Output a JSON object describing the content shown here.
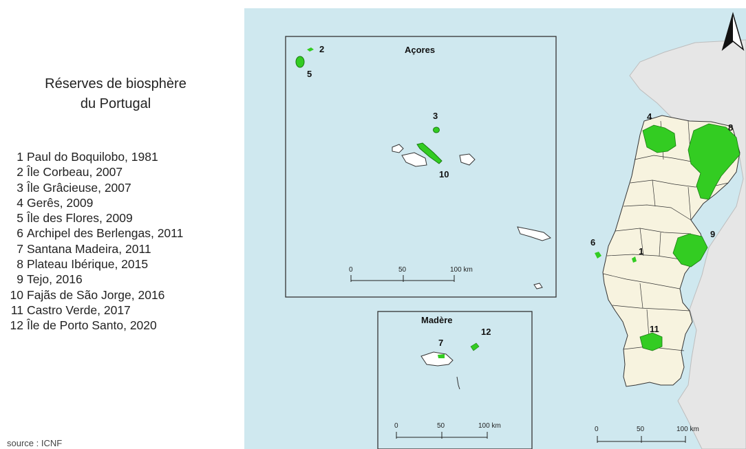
{
  "legend": {
    "title_line1": "Réserves de biosphère",
    "title_line2": "du Portugal",
    "items": [
      {
        "num": "1",
        "label": "Paul do Boquilobo, 1981"
      },
      {
        "num": "2",
        "label": "Île Corbeau, 2007"
      },
      {
        "num": "3",
        "label": "Île Grâcieuse, 2007"
      },
      {
        "num": "4",
        "label": "Gerês, 2009"
      },
      {
        "num": "5",
        "label": "Île des Flores, 2009"
      },
      {
        "num": "6",
        "label": "Archipel des Berlengas, 2011"
      },
      {
        "num": "7",
        "label": "Santana Madeira, 2011"
      },
      {
        "num": "8",
        "label": "Plateau Ibérique, 2015"
      },
      {
        "num": "9",
        "label": "Tejo, 2016"
      },
      {
        "num": "10",
        "label": "Fajãs de São Jorge, 2016"
      },
      {
        "num": "11",
        "label": "Castro Verde, 2017"
      },
      {
        "num": "12",
        "label": "Île de Porto Santo, 2020"
      }
    ]
  },
  "source": "source : ICNF",
  "inset_azores": {
    "title": "Açores",
    "scale": {
      "zero": "0",
      "mid": "50",
      "end": "100 km"
    }
  },
  "inset_madeira": {
    "title": "Madère",
    "scale": {
      "zero": "0",
      "mid": "50",
      "end": "100 km"
    }
  },
  "mainland_scale": {
    "zero": "0",
    "mid": "50",
    "end": "100 km"
  },
  "reserve_labels": {
    "r1": "1",
    "r2": "2",
    "r3": "3",
    "r4": "4",
    "r5": "5",
    "r6": "6",
    "r7": "7",
    "r8": "8",
    "r9": "9",
    "r10": "10",
    "r11": "11",
    "r12": "12"
  },
  "north_arrow_icon": "north-arrow-icon",
  "colors": {
    "sea": "#cfe8ef",
    "portugal_land": "#f7f3df",
    "spain_land": "#e6e6e6",
    "reserve_green": "#33cc22",
    "border": "#333333"
  }
}
